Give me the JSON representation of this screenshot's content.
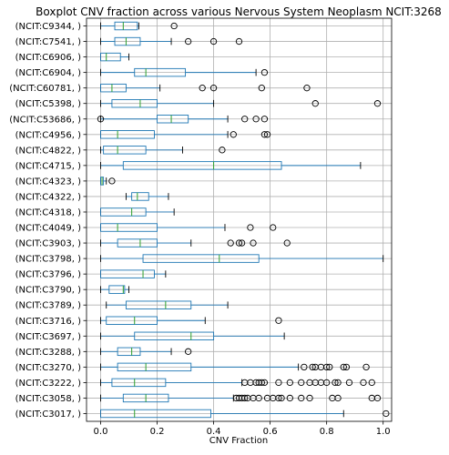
{
  "chart_data": {
    "type": "boxplot",
    "orientation": "horizontal",
    "title": "Boxplot CNV fraction across various Nervous System Neoplasm NCIT:3268",
    "xlabel": "CNV Fraction",
    "ylabel": "",
    "xlim": [
      -0.05,
      1.03
    ],
    "xticks": [
      0.0,
      0.2,
      0.4,
      0.6,
      0.8,
      1.0
    ],
    "xtick_labels": [
      "0.0",
      "0.2",
      "0.4",
      "0.6",
      "0.8",
      "1.0"
    ],
    "grid": true,
    "colors": {
      "box": "#1f77b4",
      "median": "#2ca02c",
      "grid": "#b0b0b0",
      "outlier": "#000000"
    },
    "categories": [
      {
        "label": "(NCIT:C9344,  )",
        "whislo": 0.0,
        "q1": 0.05,
        "median": 0.08,
        "q3": 0.13,
        "whishi": 0.135,
        "fliers": [
          0.26
        ]
      },
      {
        "label": "(NCIT:C7541,  )",
        "whislo": 0.0,
        "q1": 0.05,
        "median": 0.09,
        "q3": 0.14,
        "whishi": 0.25,
        "fliers": [
          0.31,
          0.4,
          0.49
        ]
      },
      {
        "label": "(NCIT:C6906,  )",
        "whislo": 0.0,
        "q1": 0.0,
        "median": 0.02,
        "q3": 0.07,
        "whishi": 0.1,
        "fliers": []
      },
      {
        "label": "(NCIT:C6904,  )",
        "whislo": 0.0,
        "q1": 0.12,
        "median": 0.16,
        "q3": 0.3,
        "whishi": 0.55,
        "fliers": [
          0.58
        ]
      },
      {
        "label": "(NCIT:C60781,  )",
        "whislo": 0.0,
        "q1": 0.0,
        "median": 0.04,
        "q3": 0.09,
        "whishi": 0.21,
        "fliers": [
          0.36,
          0.4,
          0.57,
          0.73
        ]
      },
      {
        "label": "(NCIT:C5398,  )",
        "whislo": 0.0,
        "q1": 0.04,
        "median": 0.14,
        "q3": 0.2,
        "whishi": 0.4,
        "fliers": [
          0.76,
          0.98
        ]
      },
      {
        "label": "(NCIT:C53686,  )",
        "whislo": 0.0,
        "q1": 0.2,
        "median": 0.25,
        "q3": 0.31,
        "whishi": 0.45,
        "fliers": [
          0.0,
          0.51,
          0.55,
          0.58
        ]
      },
      {
        "label": "(NCIT:C4956,  )",
        "whislo": 0.0,
        "q1": 0.0,
        "median": 0.06,
        "q3": 0.19,
        "whishi": 0.45,
        "fliers": [
          0.47,
          0.58,
          0.59
        ]
      },
      {
        "label": "(NCIT:C4822,  )",
        "whislo": 0.0,
        "q1": 0.01,
        "median": 0.06,
        "q3": 0.16,
        "whishi": 0.29,
        "fliers": [
          0.43
        ]
      },
      {
        "label": "(NCIT:C4715,  )",
        "whislo": 0.0,
        "q1": 0.08,
        "median": 0.4,
        "q3": 0.64,
        "whishi": 0.92,
        "fliers": []
      },
      {
        "label": "(NCIT:C4323,  )",
        "whislo": 0.0,
        "q1": 0.0,
        "median": 0.005,
        "q3": 0.01,
        "whishi": 0.02,
        "fliers": [
          0.04
        ]
      },
      {
        "label": "(NCIT:C4322,  )",
        "whislo": 0.09,
        "q1": 0.11,
        "median": 0.13,
        "q3": 0.17,
        "whishi": 0.24,
        "fliers": []
      },
      {
        "label": "(NCIT:C4318,  )",
        "whislo": 0.0,
        "q1": 0.0,
        "median": 0.11,
        "q3": 0.16,
        "whishi": 0.26,
        "fliers": []
      },
      {
        "label": "(NCIT:C4049,  )",
        "whislo": 0.0,
        "q1": 0.0,
        "median": 0.06,
        "q3": 0.2,
        "whishi": 0.44,
        "fliers": [
          0.53,
          0.61
        ]
      },
      {
        "label": "(NCIT:C3903,  )",
        "whislo": 0.0,
        "q1": 0.06,
        "median": 0.14,
        "q3": 0.2,
        "whishi": 0.32,
        "fliers": [
          0.46,
          0.49,
          0.5,
          0.54,
          0.66
        ]
      },
      {
        "label": "(NCIT:C3798,  )",
        "whislo": 0.0,
        "q1": 0.15,
        "median": 0.42,
        "q3": 0.56,
        "whishi": 1.0,
        "fliers": []
      },
      {
        "label": "(NCIT:C3796,  )",
        "whislo": 0.0,
        "q1": 0.0,
        "median": 0.15,
        "q3": 0.19,
        "whishi": 0.23,
        "fliers": []
      },
      {
        "label": "(NCIT:C3790,  )",
        "whislo": 0.0,
        "q1": 0.03,
        "median": 0.08,
        "q3": 0.085,
        "whishi": 0.1,
        "fliers": []
      },
      {
        "label": "(NCIT:C3789,  )",
        "whislo": 0.02,
        "q1": 0.09,
        "median": 0.23,
        "q3": 0.32,
        "whishi": 0.45,
        "fliers": []
      },
      {
        "label": "(NCIT:C3716,  )",
        "whislo": 0.0,
        "q1": 0.02,
        "median": 0.12,
        "q3": 0.2,
        "whishi": 0.37,
        "fliers": [
          0.63
        ]
      },
      {
        "label": "(NCIT:C3697,  )",
        "whislo": 0.0,
        "q1": 0.12,
        "median": 0.32,
        "q3": 0.4,
        "whishi": 0.65,
        "fliers": []
      },
      {
        "label": "(NCIT:C3288,  )",
        "whislo": 0.0,
        "q1": 0.06,
        "median": 0.11,
        "q3": 0.14,
        "whishi": 0.25,
        "fliers": [
          0.31
        ]
      },
      {
        "label": "(NCIT:C3270,  )",
        "whislo": 0.0,
        "q1": 0.06,
        "median": 0.16,
        "q3": 0.32,
        "whishi": 0.7,
        "fliers": [
          0.72,
          0.75,
          0.76,
          0.78,
          0.8,
          0.81,
          0.86,
          0.87,
          0.94
        ]
      },
      {
        "label": "(NCIT:C3222,  )",
        "whislo": 0.0,
        "q1": 0.04,
        "median": 0.12,
        "q3": 0.23,
        "whishi": 0.5,
        "fliers": [
          0.51,
          0.53,
          0.55,
          0.56,
          0.57,
          0.58,
          0.63,
          0.67,
          0.71,
          0.74,
          0.76,
          0.78,
          0.8,
          0.83,
          0.84,
          0.88,
          0.93,
          0.96
        ]
      },
      {
        "label": "(NCIT:C3058,  )",
        "whislo": 0.0,
        "q1": 0.08,
        "median": 0.16,
        "q3": 0.24,
        "whishi": 0.47,
        "fliers": [
          0.48,
          0.49,
          0.5,
          0.51,
          0.52,
          0.54,
          0.56,
          0.59,
          0.61,
          0.63,
          0.64,
          0.67,
          0.71,
          0.74,
          0.82,
          0.84,
          0.96,
          0.98
        ]
      },
      {
        "label": "(NCIT:C3017,  )",
        "whislo": 0.0,
        "q1": 0.0,
        "median": 0.12,
        "q3": 0.39,
        "whishi": 0.86,
        "fliers": [
          1.01
        ]
      }
    ]
  }
}
